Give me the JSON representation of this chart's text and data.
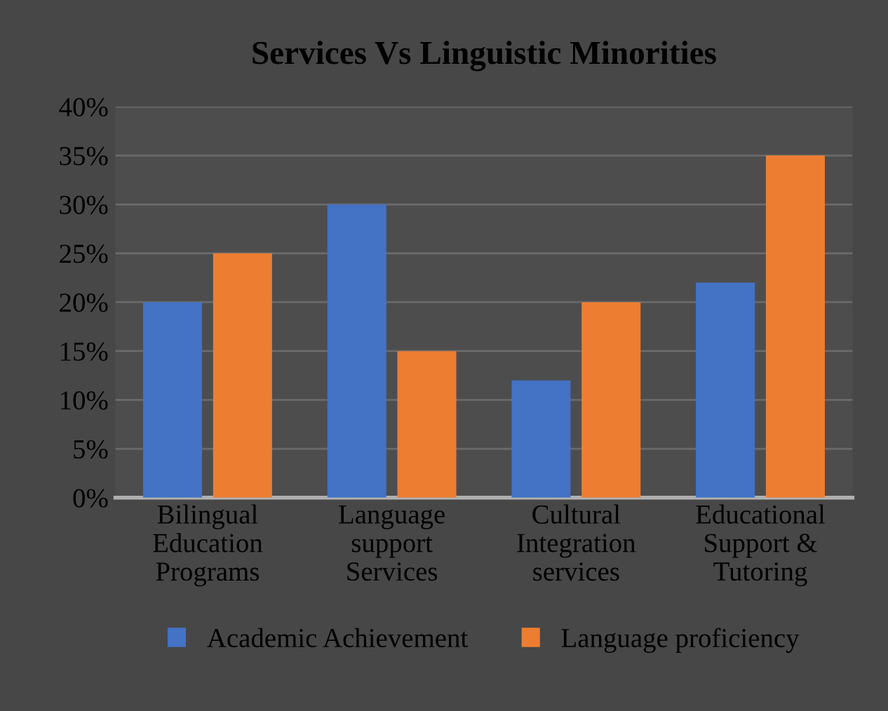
{
  "chart_data": {
    "type": "bar",
    "title": "Services Vs Linguistic Minorities",
    "categories": [
      "Bilingual\nEducation\nPrograms",
      "Language\nsupport\nServices",
      "Cultural\nIntegration\nservices",
      "Educational\nSupport &\nTutoring"
    ],
    "series": [
      {
        "name": "Academic Achievement",
        "color": "#4472c4",
        "values": [
          20,
          30,
          12,
          22
        ]
      },
      {
        "name": "Language proficiency",
        "color": "#ed7d31",
        "values": [
          25,
          15,
          20,
          35
        ]
      }
    ],
    "ylim": [
      0,
      40
    ],
    "yticks": [
      {
        "value": 0,
        "label": "0%"
      },
      {
        "value": 5,
        "label": "5%"
      },
      {
        "value": 10,
        "label": "10%"
      },
      {
        "value": 15,
        "label": "15%"
      },
      {
        "value": 20,
        "label": "20%"
      },
      {
        "value": 25,
        "label": "25%"
      },
      {
        "value": 30,
        "label": "30%"
      },
      {
        "value": 35,
        "label": "35%"
      },
      {
        "value": 40,
        "label": "40%"
      }
    ],
    "grid": "y",
    "legend": "bottom"
  }
}
